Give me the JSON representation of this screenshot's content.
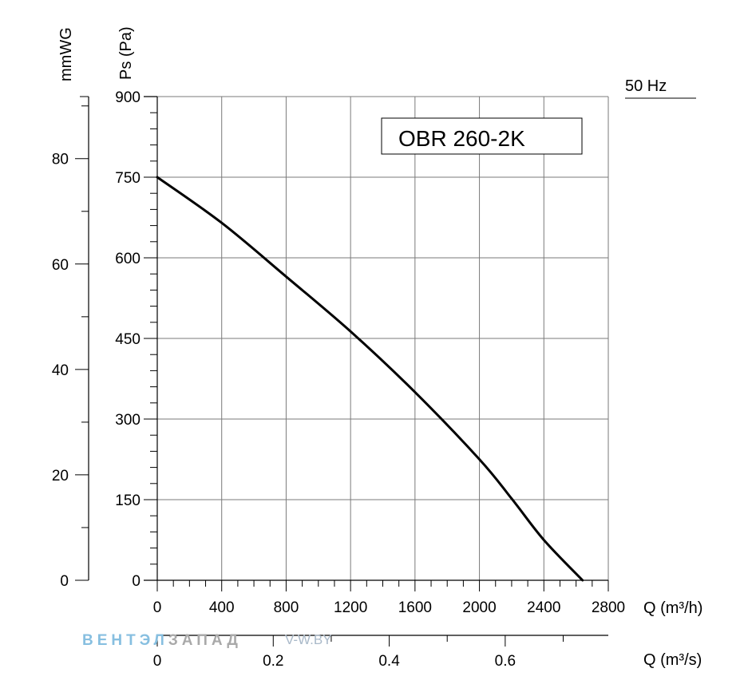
{
  "chart_data": {
    "type": "line",
    "title": "OBR 260-2K",
    "frequency_label": "50 Hz",
    "xlabel": "Q (m³/h)",
    "xlabel_secondary": "Q (m³/s)",
    "ylabel": "Ps (Pa)",
    "ylabel_secondary": "mmWG",
    "xlim": [
      0,
      2800
    ],
    "ylim": [
      0,
      900
    ],
    "x_ticks": [
      "0",
      "400",
      "800",
      "1200",
      "1600",
      "2000",
      "2400",
      "2800"
    ],
    "y_ticks": [
      "0",
      "150",
      "300",
      "450",
      "600",
      "750",
      "900"
    ],
    "x2_ticks": [
      "0",
      "0.2",
      "0.4",
      "0.6"
    ],
    "y2_ticks": [
      "0",
      "20",
      "40",
      "60",
      "80"
    ],
    "grid": true,
    "series": [
      {
        "name": "OBR 260-2K",
        "x": [
          0,
          400,
          800,
          1200,
          1600,
          2000,
          2200,
          2400,
          2640
        ],
        "y": [
          750,
          665,
          565,
          463,
          350,
          225,
          152,
          75,
          0
        ]
      }
    ]
  },
  "watermark": {
    "brand_part1": "ВЕНТЭЛ",
    "brand_part2": "ЗАПАД",
    "site": "V-W.BY"
  }
}
